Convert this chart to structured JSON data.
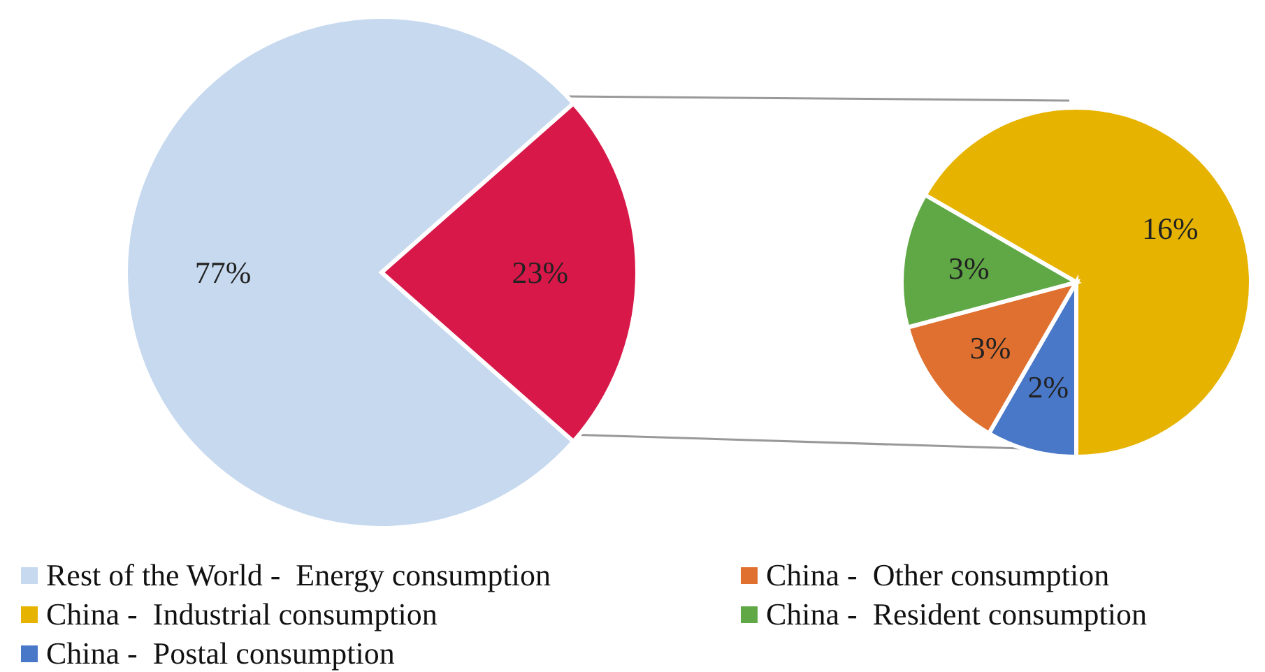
{
  "chart_data": [
    {
      "type": "pie",
      "categories": [
        "Rest of the World -  Energy consumption",
        null
      ],
      "values": [
        77,
        23
      ],
      "colors": [
        "#c6d9ef",
        "#d81848"
      ],
      "value_labels": [
        "77%",
        "23%"
      ],
      "legend": "bottom"
    },
    {
      "type": "pie",
      "categories": [
        "China -  Industrial consumption",
        "China -  Postal consumption",
        "China -  Other consumption",
        "China -  Resident consumption"
      ],
      "values": [
        16,
        2,
        3,
        3
      ],
      "colors": [
        "#e6b400",
        "#4a78c8",
        "#e07030",
        "#5fa845"
      ],
      "value_labels": [
        "16%",
        "2%",
        "3%",
        "3%"
      ],
      "legend": "bottom"
    }
  ]
}
